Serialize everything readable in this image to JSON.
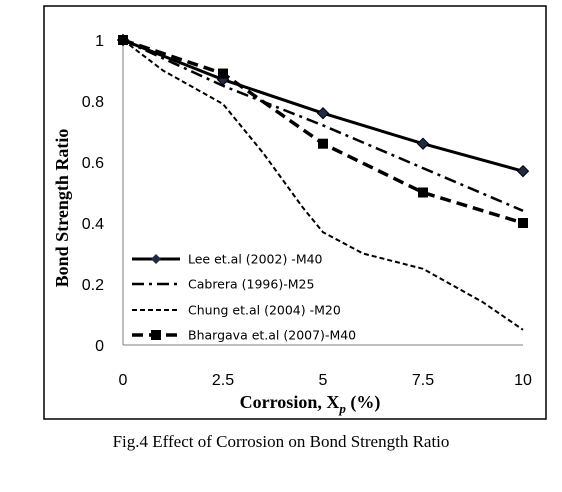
{
  "chart_data": {
    "type": "line",
    "xlabel": "Corrosion, X",
    "xlabel_subscript": "p",
    "xlabel_unit": " (%)",
    "ylabel": "Bond Strength Ratio",
    "xlim": [
      0,
      10
    ],
    "ylim": [
      0,
      1
    ],
    "xticks": [
      "0",
      "2.5",
      "5",
      "7.5",
      "10"
    ],
    "yticks": [
      "0",
      "0.2",
      "0.4",
      "0.6",
      "0.8",
      "1"
    ],
    "grid": false,
    "legend_position": "bottom-left",
    "series": [
      {
        "name": "Lee et.al (2002) -M40",
        "style": "solid",
        "marker": "diamond",
        "x": [
          0,
          2.5,
          5,
          7.5,
          10
        ],
        "y": [
          1.0,
          0.87,
          0.76,
          0.66,
          0.57
        ]
      },
      {
        "name": "Cabrera (1996)-M25",
        "style": "dashdot",
        "marker": "none",
        "x": [
          0,
          2.5,
          5,
          7.5,
          10
        ],
        "y": [
          1.0,
          0.85,
          0.72,
          0.58,
          0.44
        ]
      },
      {
        "name": "Chung et.al (2004) -M20",
        "style": "shortdash",
        "marker": "none",
        "x": [
          0,
          1,
          2.5,
          3.5,
          4.5,
          5,
          6,
          7.5,
          9,
          10
        ],
        "y": [
          1.0,
          0.9,
          0.79,
          0.63,
          0.45,
          0.37,
          0.3,
          0.25,
          0.14,
          0.05
        ]
      },
      {
        "name": "Bhargava et.al (2007)-M40",
        "style": "longdash",
        "marker": "square",
        "x": [
          0,
          2.5,
          5,
          7.5,
          10
        ],
        "y": [
          1.0,
          0.89,
          0.66,
          0.5,
          0.4
        ]
      }
    ]
  },
  "caption": "Fig.4 Effect of Corrosion on Bond Strength Ratio"
}
